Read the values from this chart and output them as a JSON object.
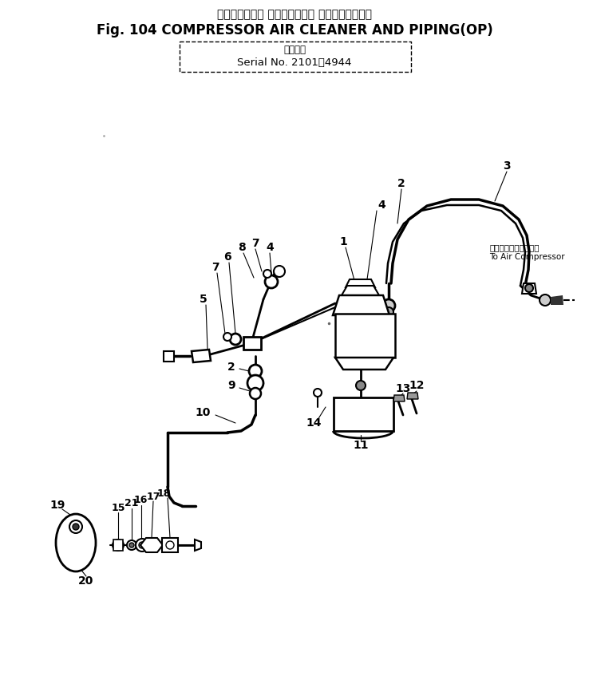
{
  "title_japanese": "コンプレッサー エアークリーナ およびパイピング",
  "title_english": "Fig. 104 COMPRESSOR AIR CLEANER AND PIPING(OP)",
  "serial_label_jp": "適用号機",
  "serial_label_en": "Serial No. 2101－4944",
  "annotation_jp": "エアーコンプレッサへ",
  "annotation_en": "To Air Compressor",
  "bg_color": "#ffffff",
  "fig_width": 7.38,
  "fig_height": 8.47,
  "dpi": 100
}
